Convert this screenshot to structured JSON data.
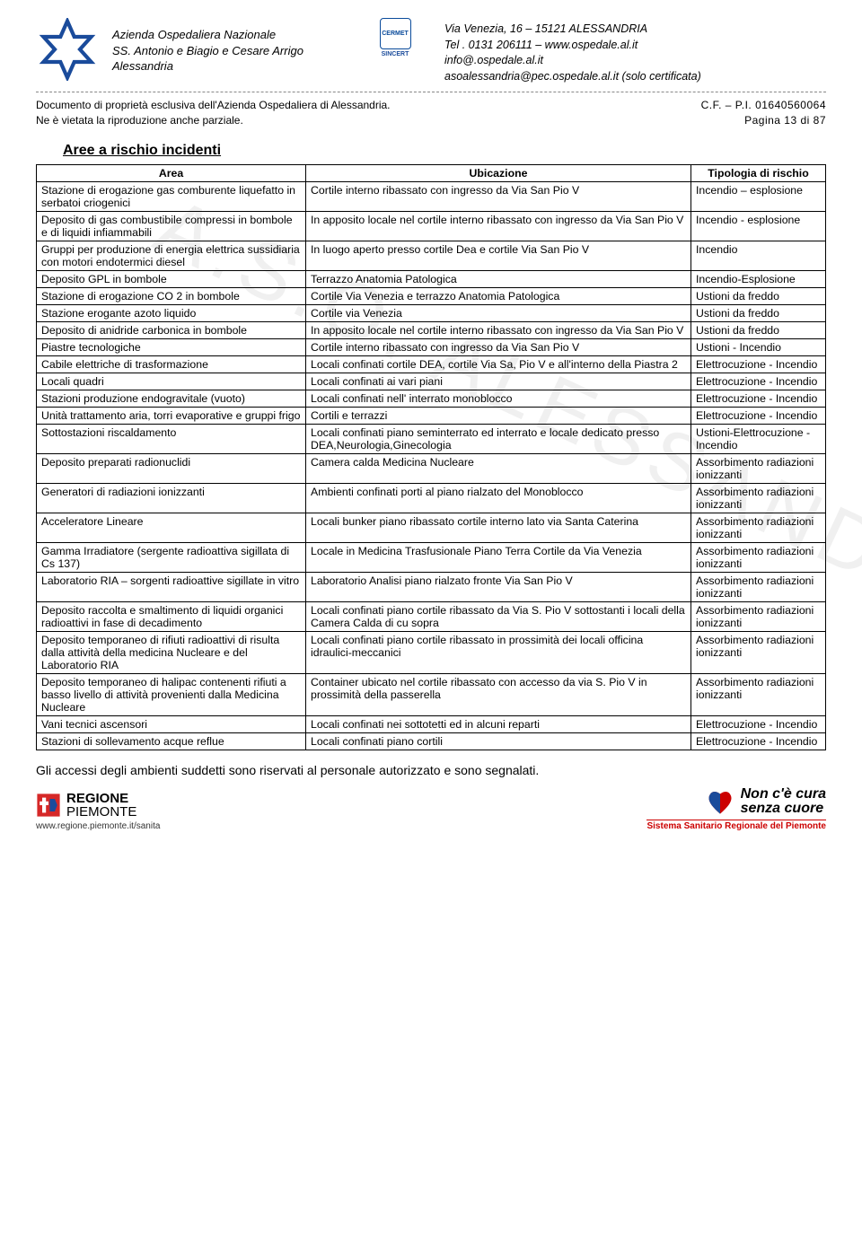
{
  "org": {
    "line1": "Azienda Ospedaliera Nazionale",
    "line2": "SS. Antonio e Biagio e Cesare Arrigo",
    "line3": "Alessandria"
  },
  "cert": {
    "label1": "CERMET",
    "label2": "SINCERT"
  },
  "addr": {
    "line1": "Via Venezia, 16 – 15121 ALESSANDRIA",
    "line2": "Tel . 0131   206111 – www.ospedale.al.it",
    "line3": "info@.ospedale.al.it",
    "line4": "asoalessandria@pec.ospedale.al.it  (solo certificata)"
  },
  "subheader": {
    "left1": "Documento di proprietà esclusiva dell'Azienda Ospedaliera di Alessandria.",
    "left2": "Ne è vietata la riproduzione anche parziale.",
    "right1": "C.F. – P.I. 01640560064",
    "right2": "Pagina 13 di 87"
  },
  "section_title": "Aree a rischio incidenti",
  "headers": {
    "area": "Area",
    "ubic": "Ubicazione",
    "risk": "Tipologia di rischio"
  },
  "rows": [
    {
      "a": "Stazione di erogazione gas comburente liquefatto in serbatoi criogenici",
      "u": "Cortile interno ribassato con ingresso da Via San Pio V",
      "r": "Incendio – esplosione"
    },
    {
      "a": "Deposito di gas combustibile compressi in bombole e di liquidi infiammabili",
      "u": "In apposito locale nel cortile interno ribassato con ingresso da Via San Pio V",
      "r": "Incendio - esplosione"
    },
    {
      "a": "Gruppi per produzione di energia elettrica sussidiaria con motori endotermici diesel",
      "u": "In luogo aperto presso cortile Dea e cortile Via San Pio V",
      "r": "Incendio"
    },
    {
      "a": "Deposito GPL in  bombole",
      "u": "Terrazzo Anatomia Patologica",
      "r": "Incendio-Esplosione"
    },
    {
      "a": "Stazione di erogazione CO 2  in bombole",
      "u": "Cortile Via Venezia e terrazzo Anatomia Patologica",
      "r": "Ustioni da freddo"
    },
    {
      "a": "Stazione erogante azoto liquido",
      "u": "Cortile via Venezia",
      "r": "Ustioni da freddo"
    },
    {
      "a": "Deposito di anidride carbonica in bombole",
      "u": "In apposito locale nel cortile interno ribassato con ingresso da Via San Pio V",
      "r": "Ustioni da freddo"
    },
    {
      "a": "Piastre tecnologiche",
      "u": "Cortile interno ribassato con ingresso da Via San Pio V",
      "r": "Ustioni - Incendio"
    },
    {
      "a": "Cabile elettriche di trasformazione",
      "u": "Locali confinati cortile DEA, cortile Via Sa, Pio V e all'interno della Piastra 2",
      "r": "Elettrocuzione - Incendio"
    },
    {
      "a": "Locali quadri",
      "u": "Locali confinati ai vari piani",
      "r": "Elettrocuzione - Incendio"
    },
    {
      "a": "Stazioni produzione endogravitale (vuoto)",
      "u": "Locali confinati nell' interrato monoblocco",
      "r": "Elettrocuzione - Incendio"
    },
    {
      "a": "Unità trattamento aria, torri evaporative e gruppi frigo",
      "u": "Cortili e terrazzi",
      "r": "Elettrocuzione - Incendio"
    },
    {
      "a": "Sottostazioni riscaldamento",
      "u": "Locali confinati piano seminterrato ed interrato e locale dedicato presso DEA,Neurologia,Ginecologia",
      "r": "Ustioni-Elettrocuzione - Incendio"
    },
    {
      "a": "Deposito preparati radionuclidi",
      "u": "Camera calda Medicina Nucleare",
      "r": "Assorbimento radiazioni ionizzanti"
    },
    {
      "a": "Generatori di radiazioni ionizzanti",
      "u": "Ambienti confinati porti al piano rialzato del Monoblocco",
      "r": "Assorbimento radiazioni ionizzanti"
    },
    {
      "a": "Acceleratore Lineare",
      "u": "Locali bunker piano ribassato cortile interno lato via Santa Caterina",
      "r": "Assorbimento radiazioni ionizzanti"
    },
    {
      "a": "Gamma Irradiatore (sergente radioattiva sigillata di Cs 137)",
      "u": "Locale in Medicina Trasfusionale Piano Terra Cortile da Via Venezia",
      "r": "Assorbimento radiazioni ionizzanti"
    },
    {
      "a": "Laboratorio RIA – sorgenti radioattive sigillate in vitro",
      "u": "Laboratorio Analisi piano rialzato fronte Via San Pio V",
      "r": "Assorbimento radiazioni ionizzanti"
    },
    {
      "a": "Deposito raccolta e smaltimento di liquidi organici radioattivi in fase di decadimento",
      "u": "Locali confinati piano cortile ribassato da Via S. Pio V sottostanti i locali della Camera Calda di cu sopra",
      "r": "Assorbimento radiazioni ionizzanti"
    },
    {
      "a": "Deposito temporaneo di rifiuti radioattivi di risulta dalla attività della medicina Nucleare e del Laboratorio RIA",
      "u": "Locali confinati piano cortile ribassato in prossimità dei locali officina idraulici-meccanici",
      "r": "Assorbimento radiazioni ionizzanti"
    },
    {
      "a": "Deposito temporaneo di halipac contenenti rifiuti a basso livello di attività provenienti dalla Medicina Nucleare",
      "u": "Container ubicato nel cortile ribassato con accesso da via S. Pio V in prossimità della passerella",
      "r": "Assorbimento radiazioni ionizzanti"
    },
    {
      "a": "Vani tecnici ascensori",
      "u": "Locali confinati nei sottotetti ed in alcuni reparti",
      "r": "Elettrocuzione - Incendio"
    },
    {
      "a": "Stazioni di sollevamento acque reflue",
      "u": "Locali confinati piano cortili",
      "r": "Elettrocuzione - Incendio"
    }
  ],
  "footnote": "Gli accessi degli ambienti suddetti sono riservati al personale autorizzato e sono  segnalati.",
  "footer": {
    "regione1": "REGIONE",
    "regione2": "PIEMONTE",
    "url": "www.regione.piemonte.it/sanita",
    "slogan1": "Non c'è cura",
    "slogan2": "senza cuore",
    "ssr": "Sistema Sanitario Regionale del Piemonte"
  },
  "watermark": "A.S.O. ALESSANDRIA"
}
